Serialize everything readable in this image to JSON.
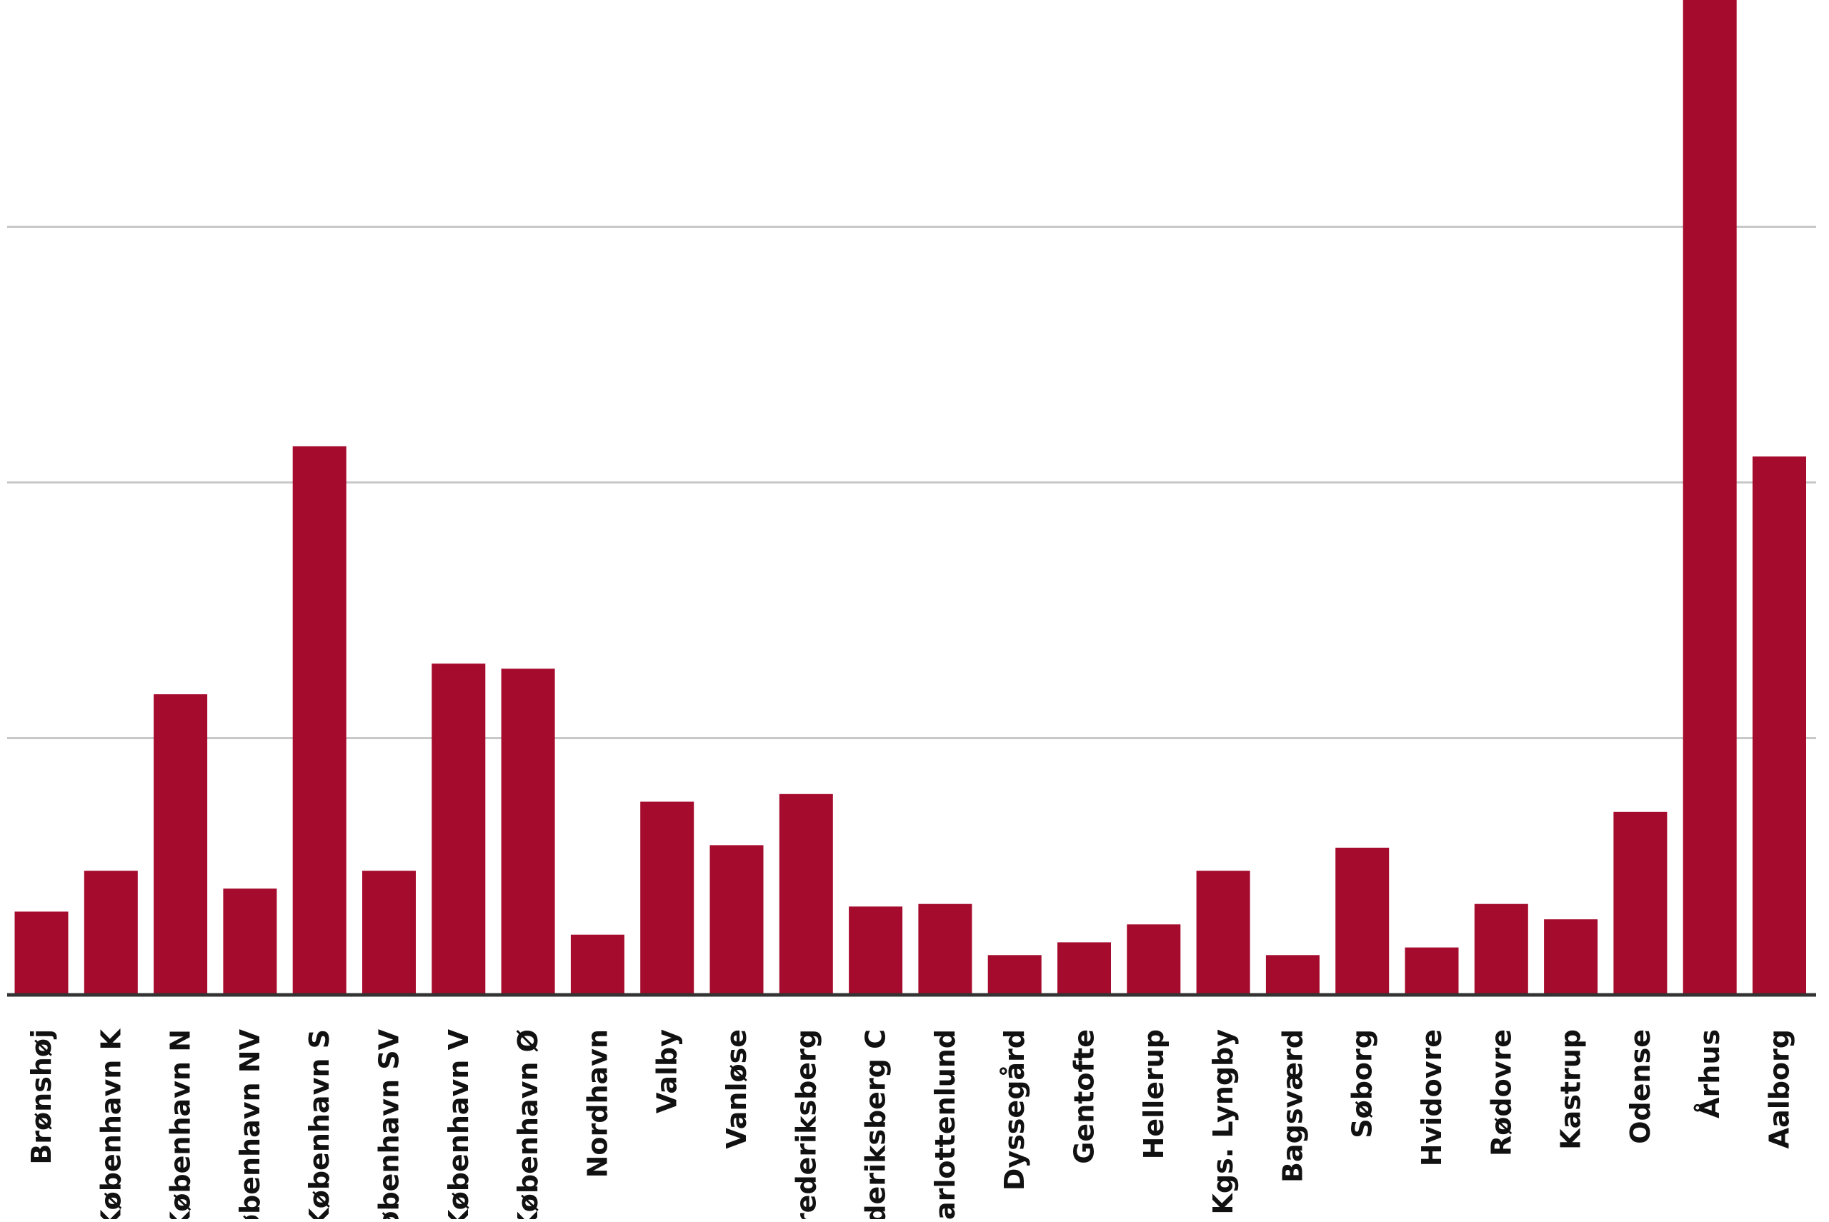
{
  "chart_data": {
    "type": "bar",
    "title": "",
    "xlabel": "",
    "ylabel": "",
    "categories": [
      "Brønshøj",
      "København K",
      "København N",
      "København NV",
      "København S",
      "København SV",
      "København V",
      "København Ø",
      "Nordhavn",
      "Valby",
      "Vanløse",
      "Frederiksberg",
      "Frederiksberg C",
      "Charlottenlund",
      "Dyssegård",
      "Gentofte",
      "Hellerup",
      "Kgs. Lyngby",
      "Bagsværd",
      "Søborg",
      "Hvidovre",
      "Rødovre",
      "Kastrup",
      "Odense",
      "Århus",
      "Aalborg"
    ],
    "values": [
      0.32,
      0.48,
      1.17,
      0.41,
      2.14,
      0.48,
      1.29,
      1.27,
      0.23,
      0.75,
      0.58,
      0.78,
      0.34,
      0.35,
      0.15,
      0.2,
      0.27,
      0.48,
      0.15,
      0.57,
      0.18,
      0.35,
      0.29,
      0.71,
      3.95,
      2.1
    ],
    "ylim": [
      0,
      3.9
    ],
    "yticks": [
      1,
      2,
      3
    ],
    "ytick_labels_shown": false,
    "grid": true,
    "bar_color": "#a50b2d",
    "grid_color": "#c8c8c8",
    "axis_color": "#333333",
    "label_color": "#111111"
  }
}
